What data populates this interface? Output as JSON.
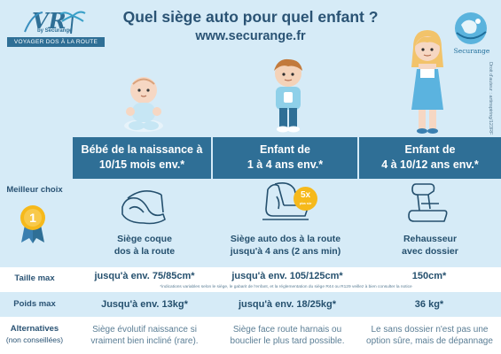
{
  "header": {
    "title": "Quel siège auto pour quel enfant ?",
    "url": "www.securange.fr"
  },
  "logo_left": {
    "brand_sub": "by Securange",
    "ribbon": "VOYAGER DOS À LA ROUTE"
  },
  "logo_right": {
    "name": "Securange"
  },
  "credit": "Droit d'auteur : artinspiring/123RF",
  "columns": [
    {
      "header_line1": "Bébé de la naissance à",
      "header_line2": "10/15 mois env.*",
      "seat_line1": "Siège coque",
      "seat_line2": "dos à la route",
      "size": "jusqu'à env. 75/85cm*",
      "weight": "Jusqu'à env. 13kg*",
      "alt_line1": "Siège évolutif naissance si",
      "alt_line2": "vraiment bien incliné (rare)."
    },
    {
      "header_line1": "Enfant de",
      "header_line2": "1 à 4 ans env.*",
      "seat_line1": "Siège auto dos à la route",
      "seat_line2": "jusqu'à 4 ans (2 ans min)",
      "size": "jusqu'à env. 105/125cm*",
      "weight": "jusqu'à env. 18/25kg*",
      "alt_line1": "Siège face route harnais ou",
      "alt_line2": "bouclier le plus tard possible."
    },
    {
      "header_line1": "Enfant de",
      "header_line2": "4 à 10/12 ans env.*",
      "seat_line1": "Rehausseur",
      "seat_line2": "avec dossier",
      "size": "150cm*",
      "weight": "36 kg*",
      "alt_line1": "Le sans dossier n'est pas une",
      "alt_line2": "option sûre, mais de dépannage"
    }
  ],
  "labels": {
    "best_choice": "Meilleur choix",
    "medal_number": "1",
    "size": "Taille max",
    "weight": "Poids max",
    "alternatives": "Alternatives",
    "alternatives_sub": "(non conseillées)"
  },
  "badge": {
    "big": "5x",
    "small": "plus sûr"
  },
  "note": "*indications variables selon le siège, le gabarit de l'enfant, et la réglementation du siège R44 ou R129 veillez à bien consulter la notice",
  "colors": {
    "background": "#d6ebf7",
    "header_blue": "#2f6f96",
    "title_text": "#2a5374",
    "badge_yellow": "#f6b91b"
  }
}
